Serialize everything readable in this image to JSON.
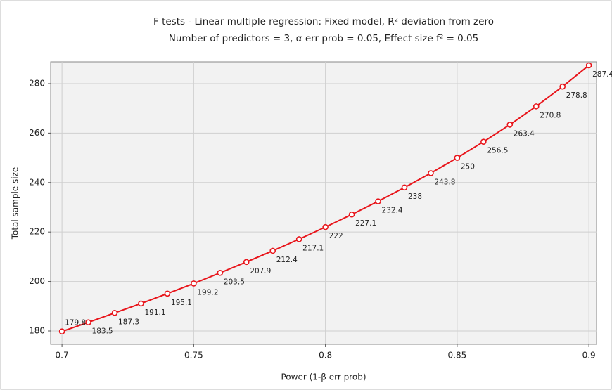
{
  "chart_data": {
    "type": "line",
    "title": "F tests - Linear multiple regression: Fixed model, R² deviation from zero",
    "subtitle": "Number of predictors = 3, α err prob = 0.05, Effect size f² = 0.05",
    "x_label": "Power (1-β err prob)",
    "y_label": "Total sample size",
    "x": [
      0.7,
      0.71,
      0.72,
      0.73,
      0.74,
      0.75,
      0.76,
      0.77,
      0.78,
      0.79,
      0.8,
      0.81,
      0.82,
      0.83,
      0.84,
      0.85,
      0.86,
      0.87,
      0.88,
      0.89,
      0.9
    ],
    "values": [
      179.8,
      183.5,
      187.3,
      191.1,
      195.1,
      199.2,
      203.5,
      207.9,
      212.4,
      217.1,
      222,
      227.1,
      232.4,
      238,
      243.8,
      250,
      256.5,
      263.4,
      270.8,
      278.8,
      287.4
    ],
    "color": "#e8151b",
    "xlim": [
      0.6957,
      0.9029
    ],
    "ylim": [
      174.6,
      288.8
    ],
    "xticks": [
      0.7,
      0.75,
      0.8,
      0.85,
      0.9
    ],
    "yticks": [
      180,
      200,
      220,
      240,
      260,
      280
    ],
    "grid": true
  }
}
